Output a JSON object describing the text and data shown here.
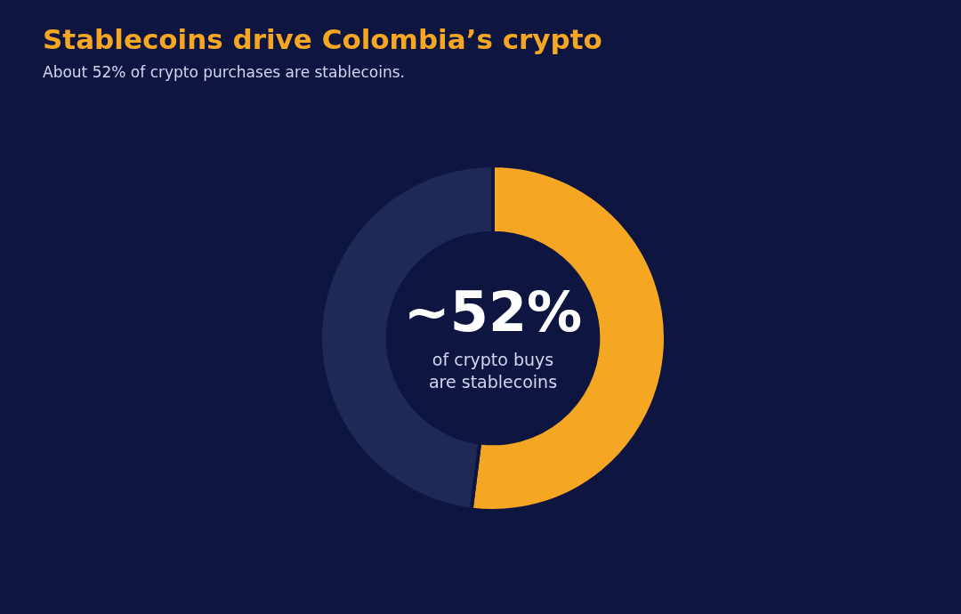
{
  "chart_data": {
    "type": "donut",
    "title": "Stablecoins drive Colombia’s crypto",
    "subtitle": "About 52% of crypto purchases are stablecoins.",
    "categories": [
      null,
      null
    ],
    "values": [
      52,
      48
    ],
    "colors": [
      "#f5a623",
      "#1e2a55"
    ],
    "annotations": [
      "~52%",
      "of crypto buys",
      "are stablecoins"
    ]
  }
}
